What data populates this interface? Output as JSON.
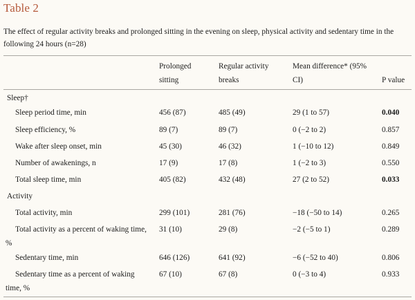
{
  "title": "Table 2",
  "caption": "The effect of regular activity breaks and prolonged sitting in the evening on sleep, physical activity and sedentary time in the following 24 hours (n=28)",
  "columns": {
    "prolonged_line1": "Prolonged",
    "prolonged_line2": "sitting",
    "regular_line1": "Regular activity",
    "regular_line2": "breaks",
    "mean_line1": "Mean difference* (95%",
    "mean_line2": "CI)",
    "p": "P value"
  },
  "groups": {
    "sleep": "Sleep†",
    "activity": "Activity"
  },
  "rows": [
    {
      "label": "Sleep period time, min",
      "prolonged": "456 (87)",
      "regular": "485 (49)",
      "mean": "29 (1 to 57)",
      "p": "0.040"
    },
    {
      "label": "Sleep efficiency, %",
      "prolonged": "89 (7)",
      "regular": "89 (7)",
      "mean": "0 (−2 to 2)",
      "p": "0.857"
    },
    {
      "label": "Wake after sleep onset, min",
      "prolonged": "45 (30)",
      "regular": "46 (32)",
      "mean": "1 (−10 to 12)",
      "p": "0.849"
    },
    {
      "label": "Number of awakenings, n",
      "prolonged": "17 (9)",
      "regular": "17 (8)",
      "mean": "1 (−2 to 3)",
      "p": "0.550"
    },
    {
      "label": "Total sleep time, min",
      "prolonged": "405 (82)",
      "regular": "432 (48)",
      "mean": "27 (2 to 52)",
      "p": "0.033"
    },
    {
      "label": "Total activity, min",
      "prolonged": "299 (101)",
      "regular": "281 (76)",
      "mean": "−18 (−50 to 14)",
      "p": "0.265"
    },
    {
      "label_line1": "Total activity as a percent of waking time,",
      "label_line2": "%",
      "prolonged": "31 (10)",
      "regular": "29 (8)",
      "mean": "−2 (−5 to 1)",
      "p": "0.289"
    },
    {
      "label": "Sedentary time, min",
      "prolonged": "646 (126)",
      "regular": "641 (92)",
      "mean": "−6 (−52 to 40)",
      "p": "0.806"
    },
    {
      "label_line1": "Sedentary time as a percent of waking",
      "label_line2": "time, %",
      "prolonged": "67 (10)",
      "regular": "67 (8)",
      "mean": "0 (−3 to 4)",
      "p": "0.933"
    }
  ]
}
